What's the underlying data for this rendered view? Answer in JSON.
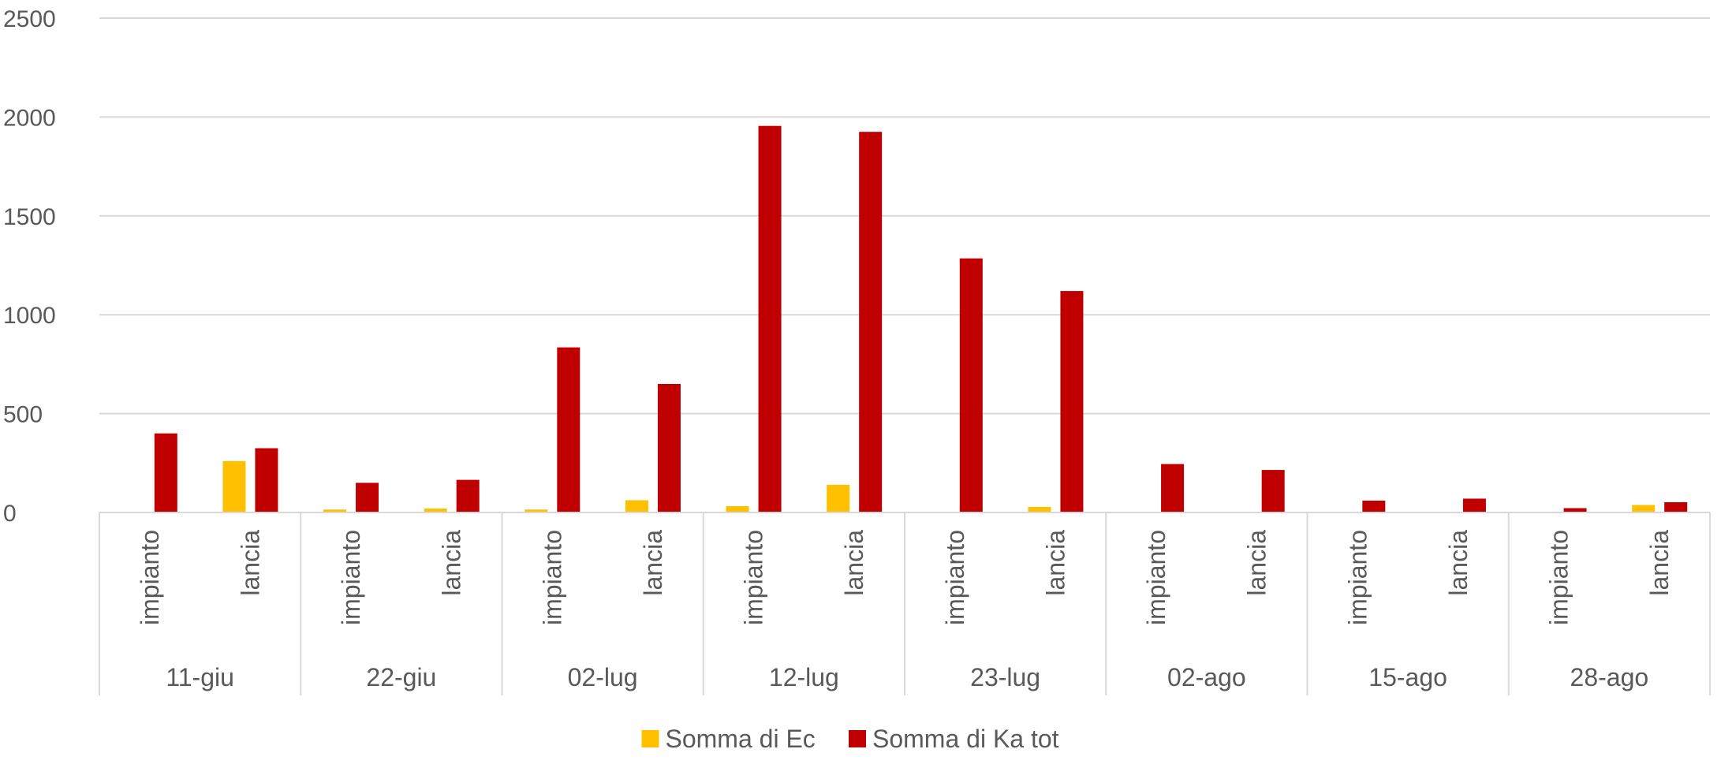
{
  "chart_data": {
    "type": "bar",
    "groups": [
      "11-giu",
      "22-giu",
      "02-lug",
      "12-lug",
      "23-lug",
      "02-ago",
      "15-ago",
      "28-ago"
    ],
    "subcategories": [
      "impianto",
      "lancia"
    ],
    "series": [
      {
        "name": "Somma di Ec",
        "color": "#FFC000",
        "values": [
          0,
          260,
          15,
          20,
          15,
          62,
          32,
          140,
          0,
          28,
          0,
          0,
          0,
          0,
          0,
          38
        ]
      },
      {
        "name": "Somma di Ka tot",
        "color": "#C00000",
        "values": [
          400,
          325,
          150,
          165,
          835,
          650,
          1955,
          1925,
          1285,
          1120,
          245,
          215,
          60,
          70,
          22,
          52
        ]
      }
    ],
    "ylim": [
      0,
      2500
    ],
    "yticks": [
      0,
      500,
      1000,
      1500,
      2000,
      2500
    ],
    "grid": true,
    "legend_position": "bottom"
  }
}
